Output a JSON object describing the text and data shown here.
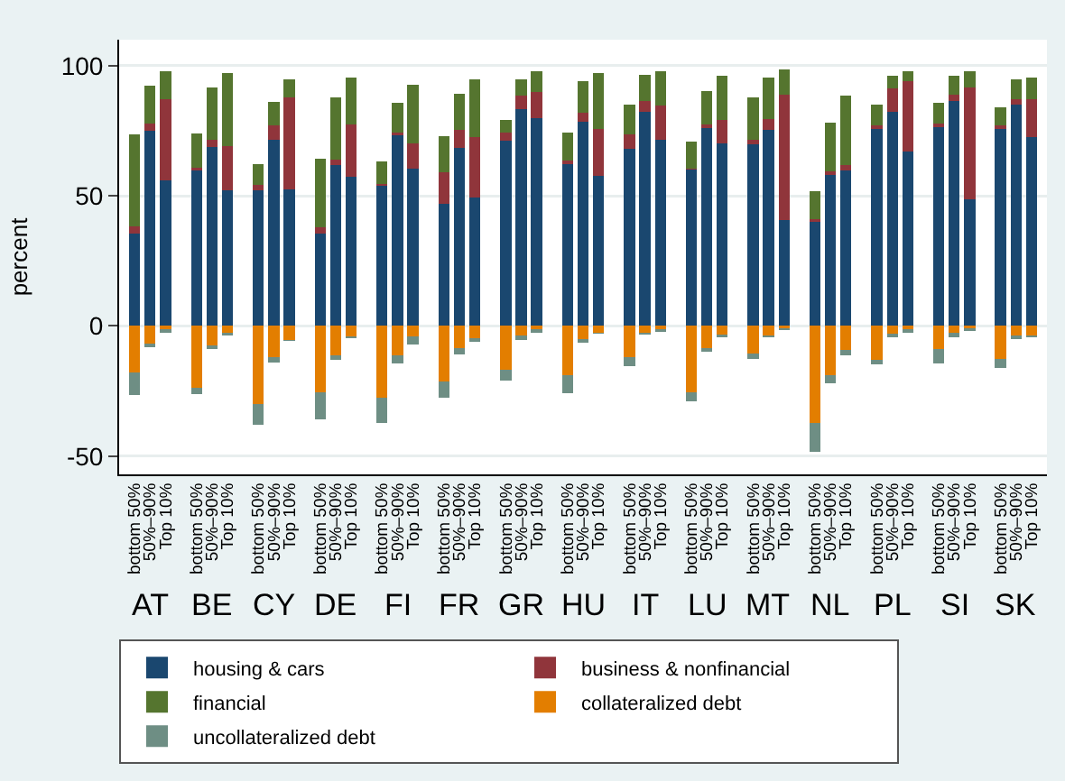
{
  "chart_data": {
    "type": "bar",
    "stacked": true,
    "ylabel": "percent",
    "categories": [
      "bottom 50%",
      "50%–90%",
      "Top 10%",
      null,
      "bottom 50%",
      "50%–90%",
      "Top 10%",
      null,
      "bottom 50%",
      "50%–90%",
      "Top 10%",
      null,
      "bottom 50%",
      "50%–90%",
      "Top 10%",
      null,
      "bottom 50%",
      "50%–90%",
      "Top 10%",
      null,
      "bottom 50%",
      "50%–90%",
      "Top 10%",
      null,
      "bottom 50%",
      "50%–90%",
      "Top 10%",
      null,
      "bottom 50%",
      "50%–90%",
      "Top 10%",
      null,
      "bottom 50%",
      "50%–90%",
      "Top 10%",
      null,
      "bottom 50%",
      "50%–90%",
      "Top 10%",
      null,
      "bottom 50%",
      "50%–90%",
      "Top 10%",
      null,
      "bottom 50%",
      "50%–90%",
      "Top 10%",
      null,
      "bottom 50%",
      "50%–90%",
      "Top 10%",
      null,
      "bottom 50%",
      "50%–90%",
      "Top 10%",
      null,
      "bottom 50%",
      "50%–90%",
      "Top 10%"
    ],
    "annotations": [
      "AT",
      "BE",
      "CY",
      "DE",
      "FI",
      "FR",
      "GR",
      "HU",
      "IT",
      "LU",
      "MT",
      "NL",
      "PL",
      "SI",
      "SK"
    ],
    "series": [
      {
        "name": "housing & cars",
        "color": "#1a476f",
        "values": [
          35.6,
          75,
          56,
          null,
          59.7,
          68.9,
          52.3,
          null,
          52.3,
          71.6,
          52.6,
          null,
          35.6,
          61.7,
          57.5,
          null,
          53.9,
          73.2,
          60.6,
          null,
          47,
          68.5,
          49.4,
          null,
          71.1,
          83.2,
          79.9,
          null,
          62.2,
          78.5,
          57.7,
          null,
          68,
          82.3,
          71.6,
          null,
          60,
          76.1,
          70.2,
          null,
          69.8,
          75.2,
          40.7,
          null,
          40,
          58.2,
          59.7,
          null,
          75.6,
          82.3,
          66.9,
          null,
          76.5,
          86.6,
          48.8,
          null,
          75.6,
          85,
          72.5
        ]
      },
      {
        "name": "business & nonfinancial",
        "color": "#90353b",
        "values": [
          2.7,
          2.9,
          31.2,
          null,
          1.2,
          2.5,
          16.8,
          null,
          1.8,
          5.4,
          35.1,
          null,
          2.4,
          2.3,
          20.1,
          null,
          0.5,
          1.1,
          9.6,
          null,
          12.1,
          6.7,
          23.3,
          null,
          3.2,
          5.4,
          10,
          null,
          1.3,
          3.4,
          18.1,
          null,
          5.6,
          4.1,
          13.2,
          null,
          0.6,
          1.5,
          8.8,
          null,
          1.6,
          4.4,
          48.1,
          null,
          0.9,
          1.1,
          2,
          null,
          1.6,
          9,
          27.1,
          null,
          1.4,
          2.2,
          42.9,
          null,
          1.4,
          2.2,
          14.5
        ]
      },
      {
        "name": "financial",
        "color": "#55752f",
        "values": [
          35.3,
          14.3,
          10.6,
          null,
          12.9,
          20.3,
          28,
          null,
          8.1,
          9.1,
          6.9,
          null,
          26.4,
          23.9,
          17.9,
          null,
          8.9,
          11.4,
          22.6,
          null,
          13.8,
          14.1,
          21.9,
          null,
          4.9,
          6.3,
          7.9,
          null,
          10.8,
          12.3,
          21.3,
          null,
          11.4,
          10.2,
          13,
          null,
          10.3,
          12.8,
          17,
          null,
          16.3,
          15.9,
          9.6,
          null,
          11,
          19,
          26.9,
          null,
          8,
          4.7,
          3.8,
          null,
          7.8,
          7.2,
          6.3,
          null,
          6.9,
          7.7,
          8.5
        ]
      },
      {
        "name": "collateralized debt",
        "color": "#e37e00",
        "values": [
          -17.7,
          -6.7,
          -1.1,
          null,
          -23.7,
          -7.4,
          -2.5,
          null,
          -29.8,
          -11.9,
          -5.4,
          null,
          -25.3,
          -11.2,
          -4,
          null,
          -27.7,
          -11.4,
          -4,
          null,
          -21.3,
          -8.5,
          -4.7,
          null,
          -16.8,
          -3.8,
          -1.3,
          null,
          -19,
          -4.9,
          -2.5,
          null,
          -12.1,
          -2.5,
          -1.3,
          null,
          -25.5,
          -8.5,
          -3.4,
          null,
          -10.5,
          -3.6,
          -0.7,
          null,
          -37.1,
          -18.8,
          -9.2,
          null,
          -13,
          -3.1,
          -1.3,
          null,
          -8.7,
          -2.5,
          -0.7,
          null,
          -12.8,
          -3.6,
          -3.6
        ]
      },
      {
        "name": "uncollateralized debt",
        "color": "#6e8e84",
        "values": [
          -8.7,
          -1.4,
          -1.6,
          null,
          -2.5,
          -1.3,
          -1.1,
          null,
          -8,
          -2.2,
          -0.4,
          null,
          -10.5,
          -1.8,
          -0.7,
          null,
          -9.4,
          -3.1,
          -3.2,
          null,
          -6.2,
          -2.5,
          -1.3,
          null,
          -4,
          -1.6,
          -1.2,
          null,
          -6.7,
          -1.4,
          -0.6,
          null,
          -3.3,
          -0.9,
          -0.9,
          null,
          -3.6,
          -1.3,
          -0.9,
          null,
          -2.3,
          -0.9,
          -0.9,
          null,
          -11.2,
          -3.3,
          -2.2,
          null,
          -1.8,
          -1.2,
          -1.4,
          null,
          -5.6,
          -1.8,
          -1.1,
          null,
          -3.3,
          -1.5,
          -0.9
        ]
      }
    ],
    "ylim": [
      -57,
      110
    ],
    "yticks": [
      -50,
      0,
      50,
      100
    ],
    "grid": "y",
    "legend": "bottom"
  }
}
